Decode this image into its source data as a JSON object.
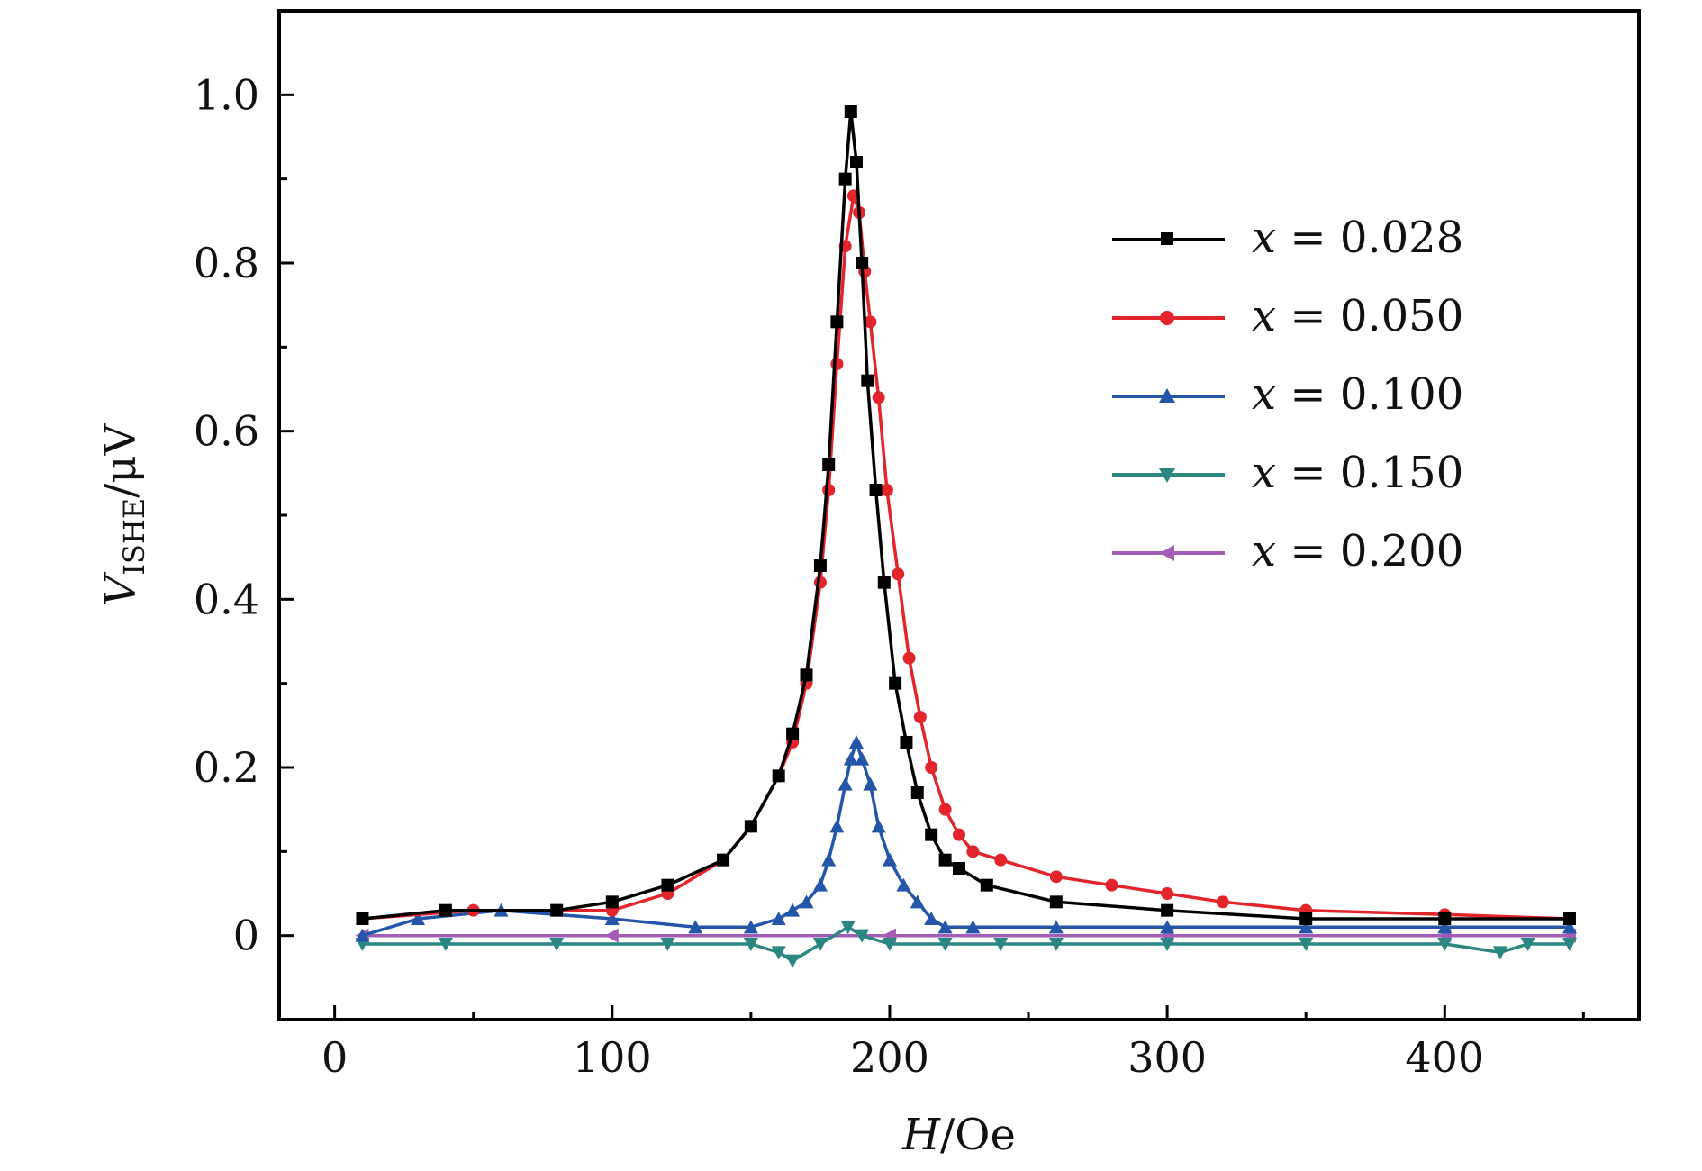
{
  "chart_data": {
    "type": "line",
    "title": "",
    "xlabel": {
      "var": "H",
      "unit": "Oe"
    },
    "ylabel": {
      "var": "V",
      "sub": "ISHE",
      "unit": "μV"
    },
    "xlim": [
      -20,
      470
    ],
    "ylim": [
      -0.1,
      1.1
    ],
    "xticks": [
      0,
      100,
      200,
      300,
      400
    ],
    "xtick_labels": [
      "0",
      "100",
      "200",
      "300",
      "400"
    ],
    "yticks": [
      0,
      0.2,
      0.4,
      0.6,
      0.8,
      1.0
    ],
    "ytick_labels": [
      "0",
      "0.2",
      "0.4",
      "0.6",
      "0.8",
      "1.0"
    ],
    "grid": false,
    "legend_position": "top-right",
    "series": [
      {
        "name": "x = 0.028",
        "label_var": "x",
        "label_value": "0.028",
        "color": "#000000",
        "marker": "square",
        "x": [
          10,
          40,
          80,
          100,
          120,
          140,
          150,
          160,
          165,
          170,
          175,
          178,
          181,
          184,
          186,
          188,
          190,
          192,
          195,
          198,
          202,
          206,
          210,
          215,
          220,
          225,
          235,
          260,
          300,
          350,
          400,
          445
        ],
        "y": [
          0.02,
          0.03,
          0.03,
          0.04,
          0.06,
          0.09,
          0.13,
          0.19,
          0.24,
          0.31,
          0.44,
          0.56,
          0.73,
          0.9,
          0.98,
          0.92,
          0.8,
          0.66,
          0.53,
          0.42,
          0.3,
          0.23,
          0.17,
          0.12,
          0.09,
          0.08,
          0.06,
          0.04,
          0.03,
          0.02,
          0.02,
          0.02
        ]
      },
      {
        "name": "x = 0.050",
        "label_var": "x",
        "label_value": "0.050",
        "color": "#e3242b",
        "marker": "circle",
        "x": [
          10,
          50,
          80,
          100,
          120,
          140,
          150,
          160,
          165,
          170,
          175,
          178,
          181,
          184,
          187,
          189,
          191,
          193,
          196,
          199,
          203,
          207,
          211,
          215,
          220,
          225,
          230,
          240,
          260,
          280,
          300,
          320,
          350,
          400,
          445
        ],
        "y": [
          0.02,
          0.03,
          0.03,
          0.03,
          0.05,
          0.09,
          0.13,
          0.19,
          0.23,
          0.3,
          0.42,
          0.53,
          0.68,
          0.82,
          0.88,
          0.86,
          0.79,
          0.73,
          0.64,
          0.53,
          0.43,
          0.33,
          0.26,
          0.2,
          0.15,
          0.12,
          0.1,
          0.09,
          0.07,
          0.06,
          0.05,
          0.04,
          0.03,
          0.025,
          0.02
        ]
      },
      {
        "name": "x = 0.100",
        "label_var": "x",
        "label_value": "0.100",
        "color": "#2356a8",
        "marker": "triangle-up",
        "x": [
          10,
          30,
          60,
          100,
          130,
          150,
          160,
          165,
          170,
          175,
          178,
          181,
          184,
          186,
          188,
          190,
          193,
          196,
          200,
          205,
          210,
          215,
          220,
          230,
          260,
          300,
          350,
          400,
          445
        ],
        "y": [
          0.0,
          0.02,
          0.03,
          0.02,
          0.01,
          0.01,
          0.02,
          0.03,
          0.04,
          0.06,
          0.09,
          0.13,
          0.18,
          0.21,
          0.23,
          0.21,
          0.18,
          0.13,
          0.09,
          0.06,
          0.04,
          0.02,
          0.01,
          0.01,
          0.01,
          0.01,
          0.01,
          0.01,
          0.01
        ]
      },
      {
        "name": "x = 0.150",
        "label_var": "x",
        "label_value": "0.150",
        "color": "#2a8782",
        "marker": "triangle-down",
        "x": [
          10,
          40,
          80,
          120,
          150,
          160,
          165,
          175,
          185,
          190,
          200,
          220,
          240,
          260,
          300,
          350,
          400,
          420,
          430,
          445
        ],
        "y": [
          -0.01,
          -0.01,
          -0.01,
          -0.01,
          -0.01,
          -0.02,
          -0.03,
          -0.01,
          0.01,
          0.0,
          -0.01,
          -0.01,
          -0.01,
          -0.01,
          -0.01,
          -0.01,
          -0.01,
          -0.02,
          -0.01,
          -0.01
        ]
      },
      {
        "name": "x = 0.200",
        "label_var": "x",
        "label_value": "0.200",
        "color": "#a35db7",
        "marker": "triangle-left",
        "x": [
          10,
          100,
          200,
          300,
          400,
          445
        ],
        "y": [
          0.0,
          0.0,
          0.0,
          0.0,
          0.0,
          0.0
        ]
      }
    ]
  }
}
